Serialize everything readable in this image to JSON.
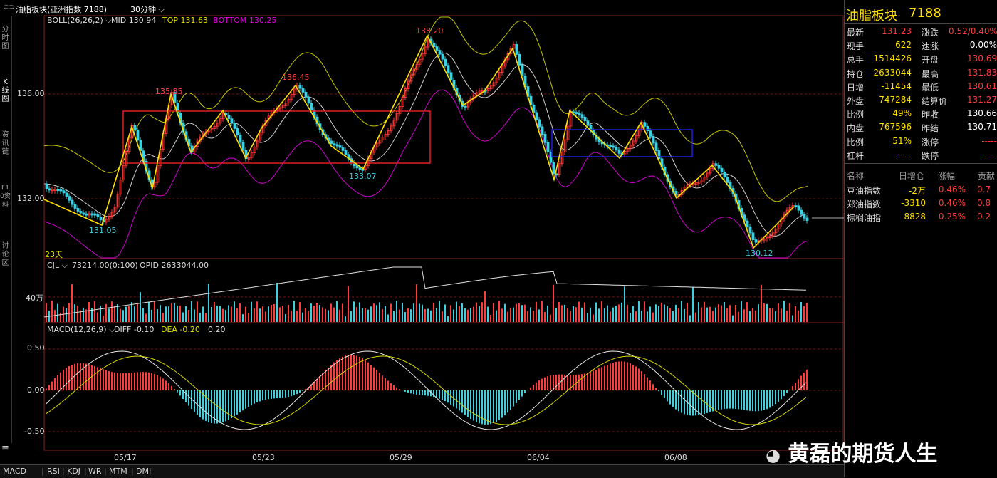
{
  "header": {
    "icon": "link-icon",
    "title": "油脂板块(亚洲指数 7188)",
    "period": "30分钟"
  },
  "left_tabs": [
    "分时图",
    "K线图",
    "资讯链",
    "F10资料",
    "讨论区"
  ],
  "main_chart": {
    "indicator_name": "BOLL(26,26,2)",
    "mid": "MID 130.94",
    "top": "TOP 131.63",
    "bottom": "BOTTOM 130.25",
    "price_labels": [
      "136.00",
      "132.00"
    ],
    "annotations": [
      "138.20",
      "135.85",
      "136.45",
      "133.07",
      "131.05",
      "130.12"
    ],
    "days_label": "23天"
  },
  "volume_panel": {
    "name": "CJL",
    "value": "73214.00(0:100)",
    "opid": "OPID 2633044.00",
    "axis_label": "40万"
  },
  "macd_panel": {
    "name": "MACD(12,26,9)",
    "diff": "DIFF -0.10",
    "dea": "DEA -0.20",
    "macd": "0.20",
    "axis_labels": [
      "0.50",
      "0.00",
      "-0.50"
    ]
  },
  "x_axis_dates": [
    "05/17",
    "05/23",
    "05/29",
    "06/04",
    "06/08"
  ],
  "bottom_tabs": [
    "MACD",
    "RSI",
    "KDJ",
    "WR",
    "MTM",
    "DMI"
  ],
  "quote": {
    "name": "油脂板块",
    "code": "7188",
    "rows": [
      {
        "l1": "最新",
        "v1": "131.23",
        "c1": "red",
        "l2": "涨跌",
        "v2": "0.52/0.40%",
        "c2": "red"
      },
      {
        "l1": "现手",
        "v1": "622",
        "c1": "yel",
        "l2": "速涨",
        "v2": "0.00%",
        "c2": "wht"
      },
      {
        "l1": "总手",
        "v1": "1514426",
        "c1": "yel",
        "l2": "开盘",
        "v2": "130.69",
        "c2": "red"
      },
      {
        "l1": "持仓",
        "v1": "2633044",
        "c1": "yel",
        "l2": "最高",
        "v2": "131.83",
        "c2": "red"
      },
      {
        "l1": "日增",
        "v1": "-11454",
        "c1": "yel",
        "l2": "最低",
        "v2": "130.61",
        "c2": "red"
      },
      {
        "l1": "外盘",
        "v1": "747284",
        "c1": "yel",
        "l2": "结算价",
        "v2": "131.27",
        "c2": "red"
      },
      {
        "l1": "比例",
        "v1": "49%",
        "c1": "yel",
        "l2": "昨收",
        "v2": "130.66",
        "c2": "wht"
      },
      {
        "l1": "内盘",
        "v1": "767596",
        "c1": "yel",
        "l2": "昨结",
        "v2": "130.71",
        "c2": "wht"
      },
      {
        "l1": "比例",
        "v1": "51%",
        "c1": "yel",
        "l2": "涨停",
        "v2": "-----",
        "c2": "red"
      },
      {
        "l1": "杠杆",
        "v1": "-----",
        "c1": "yel",
        "l2": "跌停",
        "v2": "-----",
        "c2": "grn"
      }
    ],
    "table_headers": [
      "名称",
      "日增仓",
      "涨幅",
      "贡献"
    ],
    "table_rows": [
      {
        "name": "豆油指数",
        "zc": "-2万",
        "zf": "0.46%",
        "gx": "0.7"
      },
      {
        "name": "郑油指数",
        "zc": "-3310",
        "zf": "0.46%",
        "gx": "0.8"
      },
      {
        "name": "棕榈油指",
        "zc": "8828",
        "zf": "0.25%",
        "gx": "0.2"
      }
    ]
  },
  "watermark": "黄磊的期货人生",
  "colors": {
    "bg": "#000000",
    "up": "#ff3b3b",
    "down": "#3fd0e0",
    "boll_mid": "#d0d0d0",
    "boll_top": "#c8c800",
    "boll_bottom": "#d000d0",
    "zigzag": "#ffe000",
    "box_red": "#e02020",
    "box_blue": "#2020e0"
  }
}
